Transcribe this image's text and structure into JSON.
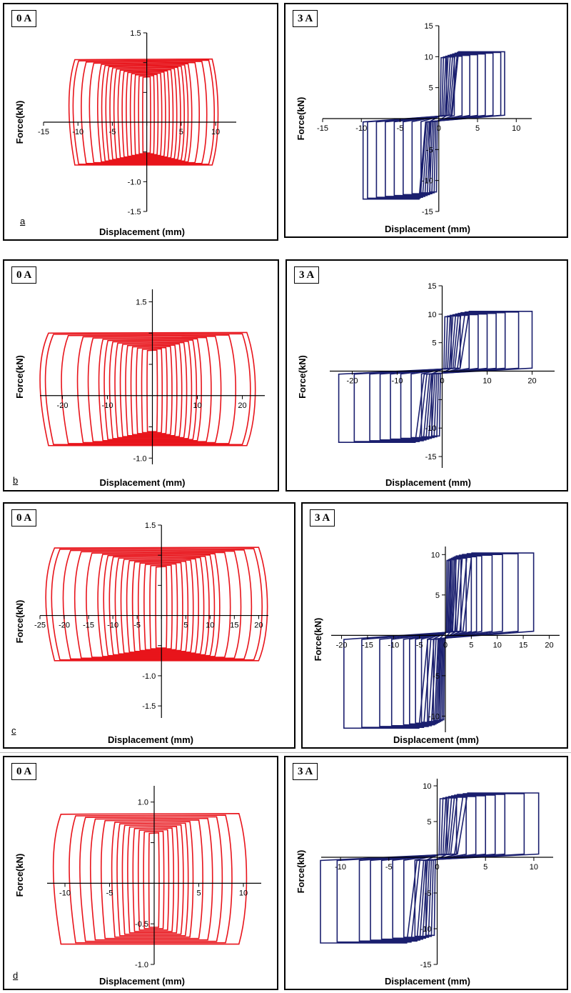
{
  "chart_data": [
    {
      "id": "a-left",
      "row_letter": "a",
      "type": "line",
      "current_label": "0 A",
      "color": "#e8141b",
      "xlabel": "Displacement (mm)",
      "ylabel": "Force(kN)",
      "xticks": [
        -15,
        -10,
        -5,
        0,
        5,
        10
      ],
      "yticks": [
        -1.5,
        -1.0,
        -0.5,
        0.5,
        1.0,
        1.5
      ],
      "xtick_labels": [
        "-15",
        "-10",
        "-5",
        "",
        "5",
        "10"
      ],
      "ytick_labels": [
        "-1.5",
        "-1.0",
        "",
        "",
        "",
        "1.5"
      ],
      "xlim": [
        -15,
        13
      ],
      "ylim": [
        -1.5,
        1.5
      ],
      "loop_amplitudes": [
        0.5,
        1,
        1.5,
        2,
        2.5,
        3,
        3.5,
        4,
        4.5,
        5,
        5.5,
        6,
        7,
        8,
        9,
        9.5
      ],
      "force_upper": 1.05,
      "force_lower": -0.72,
      "series": [
        {
          "x": [
            -2,
            -1,
            0,
            1,
            2,
            1,
            0,
            -1,
            -2
          ],
          "y": [
            -0.6,
            -0.7,
            -0.65,
            0.6,
            1.0,
            1.05,
            1.0,
            0.6,
            -0.6
          ]
        }
      ]
    },
    {
      "id": "a-right",
      "type": "line",
      "current_label": "3 A",
      "color": "#1a1f6e",
      "xlabel": "Displacement (mm)",
      "ylabel": "Force(kN)",
      "xticks": [
        -15,
        -10,
        -5,
        0,
        5,
        10
      ],
      "yticks": [
        -15,
        -10,
        -5,
        0,
        5,
        10,
        15
      ],
      "xtick_labels": [
        "-15",
        "-10",
        "-5",
        "0",
        "5",
        "10"
      ],
      "ytick_labels": [
        "-15",
        "-10",
        "-5",
        "",
        "5",
        "10",
        "15"
      ],
      "xlim": [
        -15,
        12
      ],
      "ylim": [
        -15,
        15
      ],
      "loop_amplitudes": [
        1,
        2,
        3,
        4,
        5,
        6,
        7,
        8,
        8.5
      ],
      "force_upper": 10.8,
      "force_lower": -13,
      "series": [
        {
          "x": [
            -11,
            -6,
            -2,
            0,
            2,
            6,
            9
          ],
          "y": [
            -13,
            -12.5,
            -0.5,
            0,
            0.5,
            10.5,
            10.8
          ]
        }
      ]
    },
    {
      "id": "b-left",
      "row_letter": "b",
      "type": "line",
      "current_label": "0 A",
      "color": "#e8141b",
      "xlabel": "Displacement (mm)",
      "ylabel": "Force(kN)",
      "xticks": [
        -20,
        -10,
        0,
        10,
        20
      ],
      "yticks": [
        -1.0,
        -0.5,
        0.5,
        1.0,
        1.5
      ],
      "xtick_labels": [
        "-20",
        "-10",
        "",
        "10",
        "20"
      ],
      "ytick_labels": [
        "-1.0",
        "",
        "",
        "",
        "1.5"
      ],
      "xlim": [
        -25,
        25
      ],
      "ylim": [
        -1.1,
        1.7
      ],
      "loop_amplitudes": [
        1,
        2,
        3,
        4,
        5,
        6,
        7,
        8,
        9,
        10,
        12,
        14,
        17,
        20,
        21
      ],
      "force_upper": 1.0,
      "force_lower": -0.8,
      "series": [
        {
          "x": [
            -20,
            -10,
            0,
            10,
            21
          ],
          "y": [
            -0.9,
            -0.8,
            0,
            0.9,
            1.0
          ]
        }
      ]
    },
    {
      "id": "b-right",
      "type": "line",
      "current_label": "3 A",
      "color": "#1a1f6e",
      "xlabel": "Displacement (mm)",
      "ylabel": "Force(kN)",
      "xticks": [
        -20,
        -10,
        0,
        10,
        20
      ],
      "yticks": [
        -15,
        -10,
        -5,
        5,
        10,
        15
      ],
      "xtick_labels": [
        "-20",
        "-10",
        "0",
        "10",
        "20"
      ],
      "ytick_labels": [
        "-15",
        "-10",
        "",
        "5",
        "10",
        "15"
      ],
      "xlim": [
        -25,
        25
      ],
      "ylim": [
        -17,
        15
      ],
      "loop_amplitudes": [
        2,
        4,
        6,
        8,
        10,
        12,
        14,
        17,
        20
      ],
      "force_upper": 10.5,
      "force_lower": -12.5,
      "series": [
        {
          "x": [
            -20,
            -10,
            0,
            10,
            21
          ],
          "y": [
            -12.5,
            -12,
            0,
            10.5,
            10.3
          ]
        }
      ]
    },
    {
      "id": "c-left",
      "row_letter": "c",
      "type": "line",
      "current_label": "0 A",
      "color": "#e8141b",
      "xlabel": "Displacement (mm)",
      "ylabel": "Force(kN)",
      "xticks": [
        -25,
        -20,
        -15,
        -10,
        -5,
        0,
        5,
        10,
        15,
        20
      ],
      "yticks": [
        -1.5,
        -1.0,
        -0.5,
        0.5,
        1.0,
        1.5
      ],
      "xtick_labels": [
        "-25",
        "-20",
        "-15",
        "-10",
        "-5",
        "",
        "5",
        "10",
        "15",
        "20"
      ],
      "ytick_labels": [
        "-1.5",
        "-1.0",
        "",
        "",
        "",
        "1.5"
      ],
      "xlim": [
        -25,
        22
      ],
      "ylim": [
        -1.7,
        1.5
      ],
      "loop_amplitudes": [
        1,
        2,
        3,
        4,
        5,
        6,
        7,
        8,
        9,
        10,
        11,
        13,
        15,
        17,
        19,
        20
      ],
      "force_upper": 1.12,
      "force_lower": -0.75,
      "series": [
        {
          "x": [
            -20,
            -10,
            0,
            10,
            17
          ],
          "y": [
            -0.8,
            -0.75,
            0,
            1.1,
            1.12
          ]
        }
      ]
    },
    {
      "id": "c-right",
      "type": "line",
      "current_label": "3 A",
      "color": "#1a1f6e",
      "xlabel": "Displacement (mm)",
      "ylabel": "Force(kN)",
      "xticks": [
        -20,
        -15,
        -10,
        -5,
        0,
        5,
        10,
        15,
        20
      ],
      "yticks": [
        -10,
        -5,
        0,
        5,
        10
      ],
      "xtick_labels": [
        "-20",
        "-15",
        "-10",
        "-5",
        "0",
        "5",
        "10",
        "15",
        "20"
      ],
      "ytick_labels": [
        "-10",
        "-5",
        "",
        "5",
        "10"
      ],
      "xlim": [
        -22,
        22
      ],
      "ylim": [
        -12,
        11
      ],
      "loop_amplitudes": [
        1,
        2,
        3,
        4,
        5,
        6,
        7,
        9,
        11,
        14,
        17
      ],
      "force_upper": 10.2,
      "force_lower": -11.5,
      "series": [
        {
          "x": [
            -20,
            -10,
            0,
            10,
            17
          ],
          "y": [
            -11.5,
            -11,
            0,
            10.2,
            10
          ]
        }
      ]
    },
    {
      "id": "d-left",
      "row_letter": "d",
      "type": "line",
      "current_label": "0 A",
      "color": "#e8141b",
      "xlabel": "Displacement (mm)",
      "ylabel": "Force(kN)",
      "xticks": [
        -10,
        -5,
        0,
        5,
        10
      ],
      "yticks": [
        -1.0,
        -0.5,
        0.5,
        1.0
      ],
      "xtick_labels": [
        "-10",
        "-5",
        "",
        "5",
        "10"
      ],
      "ytick_labels": [
        "-1.0",
        "-0.5",
        "",
        "1.0"
      ],
      "xlim": [
        -12,
        12
      ],
      "ylim": [
        -1.0,
        1.2
      ],
      "loop_amplitudes": [
        0.5,
        1,
        1.5,
        2,
        2.5,
        3,
        3.5,
        4,
        5,
        6,
        7,
        8,
        9.5
      ],
      "force_upper": 0.85,
      "force_lower": -0.75,
      "series": [
        {
          "x": [
            -9.5,
            -5,
            0,
            5,
            10
          ],
          "y": [
            -0.7,
            -0.6,
            0,
            0.85,
            0.8
          ]
        }
      ]
    },
    {
      "id": "d-right",
      "type": "line",
      "current_label": "3 A",
      "color": "#1a1f6e",
      "xlabel": "Displacement (mm)",
      "ylabel": "Force(kN)",
      "xticks": [
        -10,
        -5,
        0,
        5,
        10
      ],
      "yticks": [
        -15,
        -10,
        -5,
        5,
        10
      ],
      "xtick_labels": [
        "-10",
        "-5",
        "0",
        "5",
        "10"
      ],
      "ytick_labels": [
        "-15",
        "-10",
        "-5",
        "5",
        "10"
      ],
      "xlim": [
        -12,
        12
      ],
      "ylim": [
        -15,
        11
      ],
      "loop_amplitudes": [
        1,
        2,
        3,
        4,
        5,
        6,
        7,
        9,
        10.5
      ],
      "force_upper": 9,
      "force_lower": -12,
      "series": [
        {
          "x": [
            -9.5,
            -5,
            0,
            5,
            8.5,
            10.5
          ],
          "y": [
            -12,
            -1,
            0,
            1.5,
            9,
            4
          ]
        }
      ]
    }
  ]
}
